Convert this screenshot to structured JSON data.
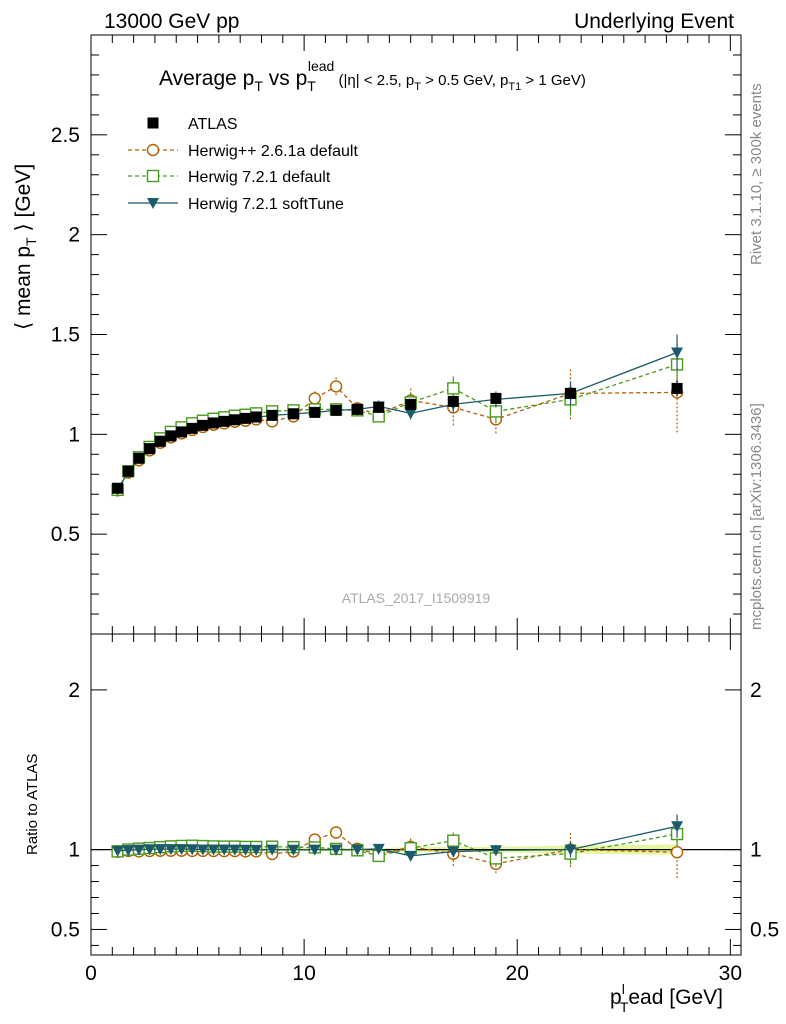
{
  "header": {
    "left": "13000 GeV pp",
    "right": "Underlying Event"
  },
  "side": {
    "rivet": "Rivet 3.1.10, ≥ 300k events",
    "mcplots": "mcplots.cern.ch [arXiv:1306.3436]"
  },
  "title": {
    "main": "Average p",
    "main_sub": "T",
    "vs": " vs p",
    "vs_sub": "T",
    "vs_sup": "lead",
    "cuts_a": " (|η| < 2.5, p",
    "cuts_a_sub": "T",
    "cuts_b": " > 0.5 GeV, p",
    "cuts_b_sub": "T1",
    "cuts_c": " > 1 GeV)"
  },
  "watermark": "ATLAS_2017_I1509919",
  "axes": {
    "ylabel_main": "⟨ mean p",
    "ylabel_main_sub": "T",
    "ylabel_main_end": " ⟩ [GeV]",
    "ylabel_ratio": "Ratio to ATLAS",
    "xlabel": "p",
    "xlabel_sup": "l",
    "xlabel_sub": "T",
    "xlabel_end": "ead [GeV]"
  },
  "legend": [
    {
      "label": "ATLAS"
    },
    {
      "label": "Herwig++ 2.6.1a default"
    },
    {
      "label": "Herwig 7.2.1 default"
    },
    {
      "label": "Herwig 7.2.1 softTune"
    }
  ],
  "chart_data": {
    "type": "scatter",
    "xlim": [
      0,
      30.5
    ],
    "ylim": [
      0,
      3.0
    ],
    "ratio_ylim": [
      0.34,
      2.35
    ],
    "x_ticks": [
      0,
      10,
      20,
      30
    ],
    "y_ticks": [
      0.5,
      1,
      1.5,
      2,
      2.5
    ],
    "y_tick_labels": [
      "0.5",
      "1",
      "1.5",
      "2",
      "2.5"
    ],
    "ratio_ticks": [
      0.5,
      1,
      2
    ],
    "ratio_tick_labels": [
      "0.5",
      "1",
      "2"
    ],
    "x_tick_labels": [
      "0",
      "10",
      "20",
      "30"
    ],
    "x": [
      1.25,
      1.75,
      2.25,
      2.75,
      3.25,
      3.75,
      4.25,
      4.75,
      5.25,
      5.75,
      6.25,
      6.75,
      7.25,
      7.75,
      8.5,
      9.5,
      10.5,
      11.5,
      12.5,
      13.5,
      15.0,
      17.0,
      19.0,
      22.5,
      27.5
    ],
    "series": [
      {
        "name": "ATLAS",
        "color": "#000000",
        "values": [
          0.73,
          0.815,
          0.88,
          0.928,
          0.965,
          0.992,
          1.012,
          1.03,
          1.045,
          1.057,
          1.065,
          1.073,
          1.08,
          1.087,
          1.095,
          1.103,
          1.11,
          1.12,
          1.125,
          1.135,
          1.15,
          1.165,
          1.18,
          1.205,
          1.23
        ],
        "errors": [
          0.01,
          0.01,
          0.01,
          0.01,
          0.01,
          0.01,
          0.01,
          0.01,
          0.01,
          0.01,
          0.01,
          0.01,
          0.01,
          0.01,
          0.01,
          0.01,
          0.01,
          0.01,
          0.01,
          0.01,
          0.02,
          0.02,
          0.02,
          0.03,
          0.04
        ]
      },
      {
        "name": "Herwig++ 2.6.1a default",
        "color": "#b35f00",
        "values": [
          0.72,
          0.808,
          0.87,
          0.92,
          0.958,
          0.985,
          1.005,
          1.022,
          1.037,
          1.048,
          1.055,
          1.063,
          1.068,
          1.075,
          1.065,
          1.09,
          1.18,
          1.24,
          1.13,
          1.1,
          1.17,
          1.135,
          1.075,
          1.205,
          1.21
        ],
        "errors": [
          0.005,
          0.005,
          0.005,
          0.006,
          0.006,
          0.007,
          0.007,
          0.008,
          0.008,
          0.009,
          0.01,
          0.01,
          0.011,
          0.012,
          0.012,
          0.015,
          0.035,
          0.045,
          0.04,
          0.04,
          0.07,
          0.09,
          0.07,
          0.13,
          0.2
        ]
      },
      {
        "name": "Herwig 7.2.1 default",
        "color": "#4a9a1f",
        "values": [
          0.722,
          0.815,
          0.885,
          0.937,
          0.98,
          1.012,
          1.035,
          1.055,
          1.068,
          1.078,
          1.085,
          1.093,
          1.098,
          1.105,
          1.115,
          1.12,
          1.125,
          1.125,
          1.12,
          1.09,
          1.16,
          1.23,
          1.115,
          1.175,
          1.35
        ],
        "errors": [
          0.005,
          0.005,
          0.005,
          0.006,
          0.006,
          0.007,
          0.007,
          0.008,
          0.008,
          0.009,
          0.01,
          0.01,
          0.011,
          0.012,
          0.012,
          0.015,
          0.02,
          0.03,
          0.03,
          0.03,
          0.05,
          0.06,
          0.06,
          0.08,
          0.1
        ]
      },
      {
        "name": "Herwig 7.2.1 softTune",
        "color": "#1c5a6a",
        "values": [
          0.725,
          0.812,
          0.88,
          0.93,
          0.968,
          0.995,
          1.015,
          1.032,
          1.046,
          1.058,
          1.066,
          1.073,
          1.079,
          1.085,
          1.095,
          1.102,
          1.11,
          1.12,
          1.125,
          1.14,
          1.105,
          1.15,
          1.175,
          1.205,
          1.41
        ],
        "errors": [
          0.005,
          0.005,
          0.005,
          0.006,
          0.006,
          0.007,
          0.007,
          0.008,
          0.008,
          0.009,
          0.01,
          0.01,
          0.011,
          0.012,
          0.012,
          0.015,
          0.02,
          0.02,
          0.03,
          0.03,
          0.03,
          0.04,
          0.04,
          0.06,
          0.09
        ]
      }
    ]
  }
}
